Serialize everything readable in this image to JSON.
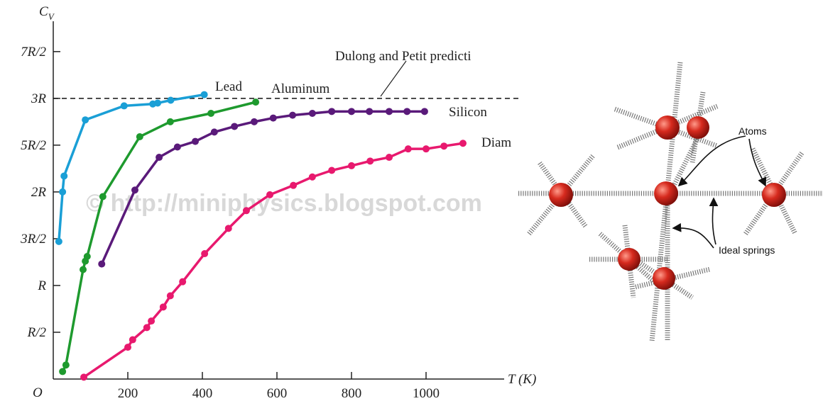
{
  "chart_data": {
    "type": "line",
    "y_label": "C",
    "y_label_sub": "V",
    "x_label": "T (K)",
    "origin_label": "O",
    "watermark": "© http://miniphysics.blogspot.com",
    "reference_line": {
      "value": 3,
      "label": "Dulong and Petit predicti"
    },
    "xlim": [
      0,
      1200
    ],
    "ylim": [
      0,
      3.9
    ],
    "xticks": [
      200,
      400,
      600,
      800,
      1000
    ],
    "yticks": [
      {
        "value": 0.5,
        "label": "R/2"
      },
      {
        "value": 1,
        "label": "R"
      },
      {
        "value": 1.5,
        "label": "3R/2"
      },
      {
        "value": 2,
        "label": "2R"
      },
      {
        "value": 2.5,
        "label": "5R/2"
      },
      {
        "value": 3,
        "label": "3R"
      },
      {
        "value": 3.5,
        "label": "7R/2"
      }
    ],
    "series": [
      {
        "name": "Lead",
        "color": "#1a9fd6",
        "x": [
          15,
          25,
          29,
          86,
          190,
          267,
          280,
          315,
          405
        ],
        "values": [
          1.47,
          2.0,
          2.17,
          2.77,
          2.92,
          2.94,
          2.95,
          2.98,
          3.04
        ]
      },
      {
        "name": "Aluminum",
        "color": "#1e9a2e",
        "x": [
          25,
          34,
          80,
          86,
          91,
          133,
          232,
          314,
          423,
          543
        ],
        "values": [
          0.08,
          0.15,
          1.17,
          1.26,
          1.31,
          1.95,
          2.59,
          2.75,
          2.84,
          2.96
        ]
      },
      {
        "name": "Silicon",
        "color": "#5a1a7a",
        "x": [
          130,
          219,
          284,
          333,
          381,
          432,
          486,
          539,
          590,
          642,
          695,
          747,
          800,
          848,
          901,
          949,
          996
        ],
        "values": [
          1.23,
          2.02,
          2.37,
          2.48,
          2.54,
          2.64,
          2.7,
          2.75,
          2.79,
          2.82,
          2.84,
          2.86,
          2.86,
          2.86,
          2.86,
          2.86,
          2.86
        ]
      },
      {
        "name": "Diam",
        "color": "#e8196e",
        "x": [
          82,
          200,
          213,
          251,
          263,
          295,
          314,
          347,
          406,
          470,
          518,
          581,
          644,
          695,
          747,
          800,
          850,
          901,
          952,
          1000,
          1048,
          1099
        ],
        "values": [
          0.02,
          0.34,
          0.42,
          0.55,
          0.62,
          0.77,
          0.89,
          1.04,
          1.34,
          1.61,
          1.8,
          1.97,
          2.07,
          2.16,
          2.23,
          2.28,
          2.33,
          2.37,
          2.46,
          2.46,
          2.49,
          2.52
        ]
      }
    ]
  },
  "diagram": {
    "labels": {
      "atoms": "Atoms",
      "springs": "Ideal springs"
    }
  }
}
